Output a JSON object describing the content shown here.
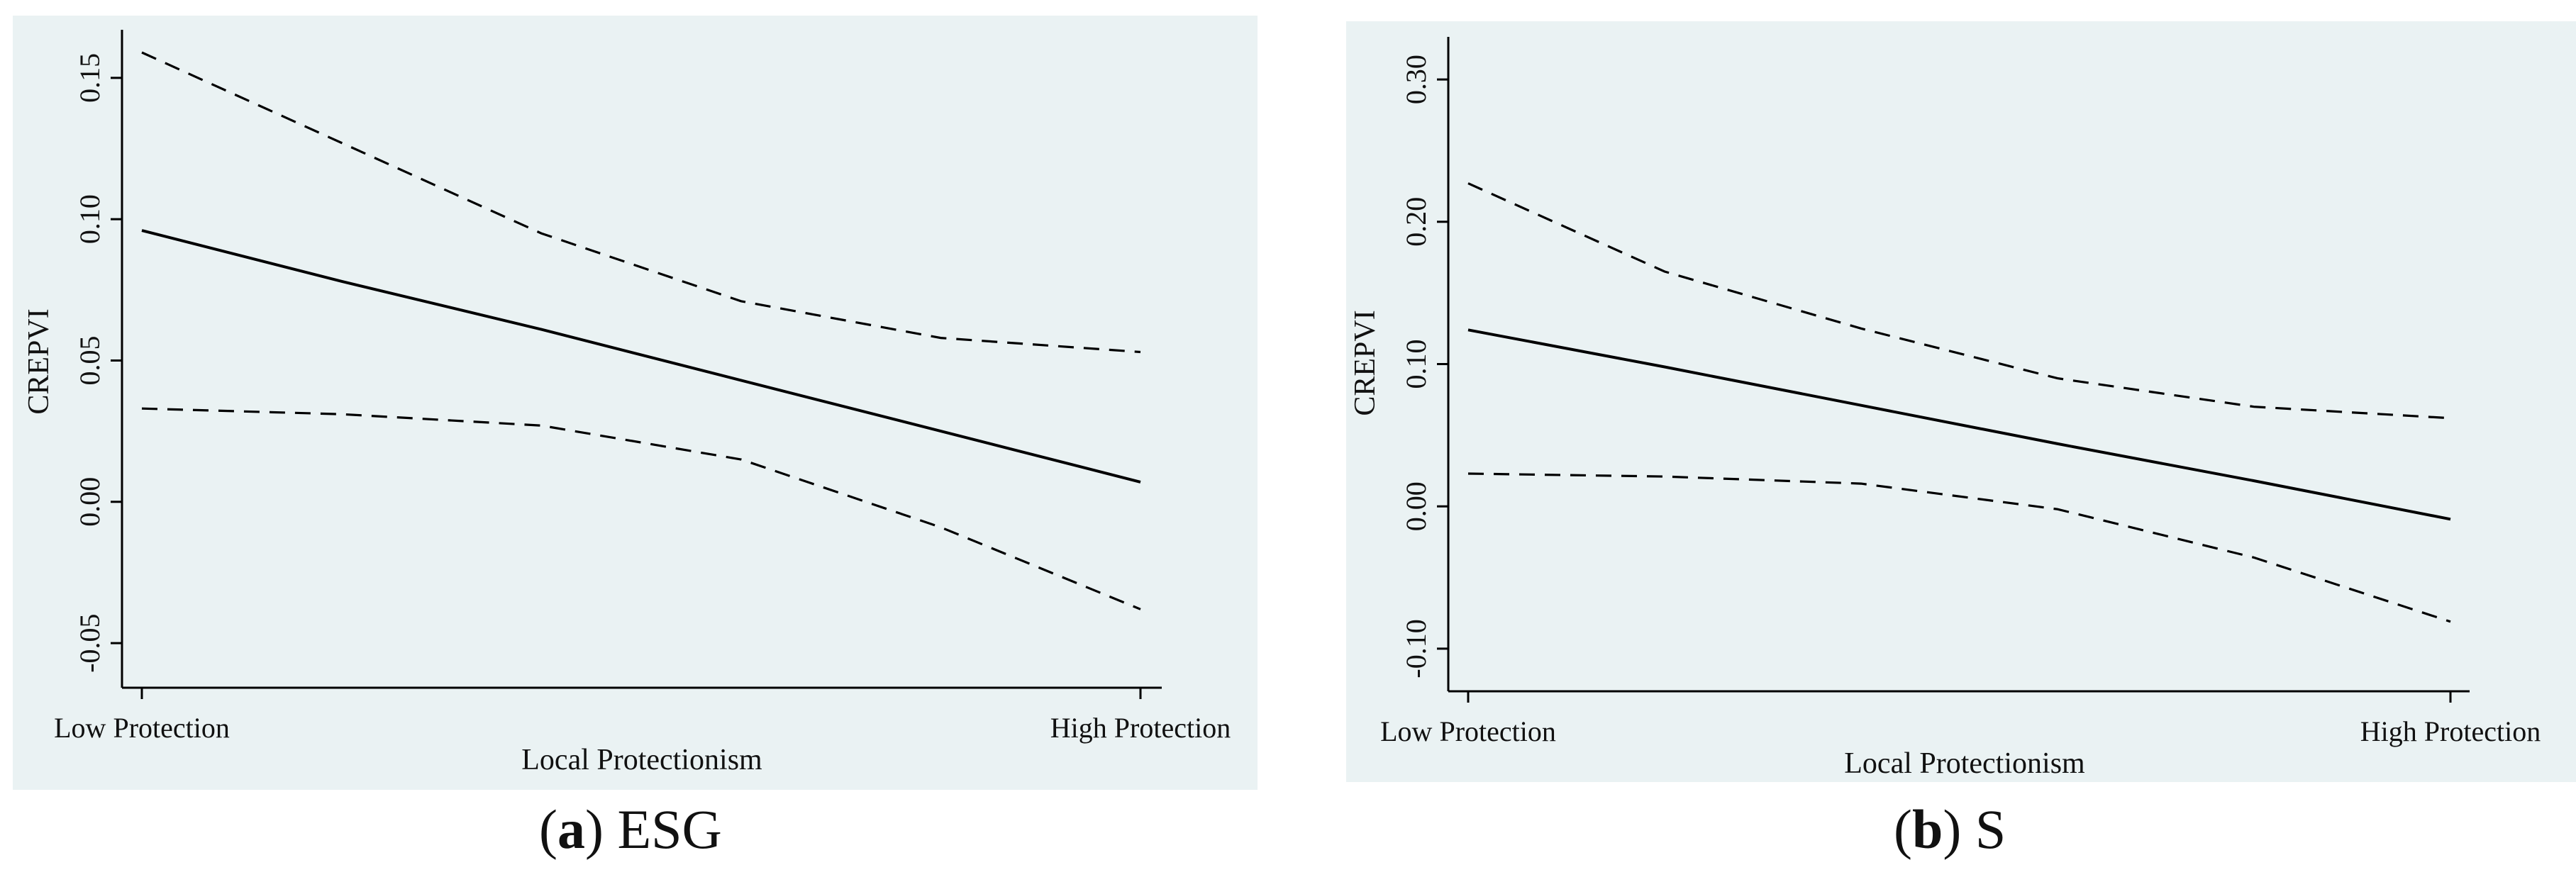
{
  "figures": [
    {
      "caption_letter": "a",
      "caption_text": "ESG"
    },
    {
      "caption_letter": "b",
      "caption_text": "S"
    }
  ],
  "chart_data": [
    {
      "type": "line",
      "title": "",
      "xlabel": "Local Protectionism",
      "ylabel": "CREPVI",
      "x_categories": [
        "Low Protection",
        "High Protection"
      ],
      "ylim": [
        -0.057,
        0.162
      ],
      "yticks": [
        -0.05,
        0.0,
        0.05,
        0.1,
        0.15
      ],
      "ytick_labels": [
        "-0.05",
        "0.00",
        "0.05",
        "0.10",
        "0.15"
      ],
      "x": [
        0,
        0.2,
        0.4,
        0.6,
        0.8,
        1.0
      ],
      "grid": false,
      "legend": "none",
      "series": [
        {
          "style": "solid",
          "values": [
            0.096,
            0.078,
            0.061,
            0.043,
            0.025,
            0.007
          ]
        },
        {
          "style": "dashed",
          "values": [
            0.159,
            0.127,
            0.095,
            0.071,
            0.058,
            0.053
          ]
        },
        {
          "style": "dashed",
          "values": [
            0.033,
            0.031,
            0.027,
            0.015,
            -0.009,
            -0.038
          ]
        }
      ]
    },
    {
      "type": "line",
      "title": "",
      "xlabel": "Local Protectionism",
      "ylabel": "CREPVI",
      "x_categories": [
        "Low Protection",
        "High Protection"
      ],
      "ylim": [
        -0.115,
        0.315
      ],
      "yticks": [
        -0.1,
        0.0,
        0.1,
        0.2,
        0.3
      ],
      "ytick_labels": [
        "-0.10",
        "0.00",
        "0.10",
        "0.20",
        "0.30"
      ],
      "x": [
        0,
        0.2,
        0.4,
        0.6,
        0.8,
        1.0
      ],
      "grid": false,
      "legend": "none",
      "series": [
        {
          "style": "solid",
          "values": [
            0.124,
            0.098,
            0.071,
            0.044,
            0.018,
            -0.009
          ]
        },
        {
          "style": "dashed",
          "values": [
            0.227,
            0.165,
            0.125,
            0.09,
            0.07,
            0.062
          ]
        },
        {
          "style": "dashed",
          "values": [
            0.023,
            0.021,
            0.016,
            -0.002,
            -0.036,
            -0.081
          ]
        }
      ]
    }
  ]
}
